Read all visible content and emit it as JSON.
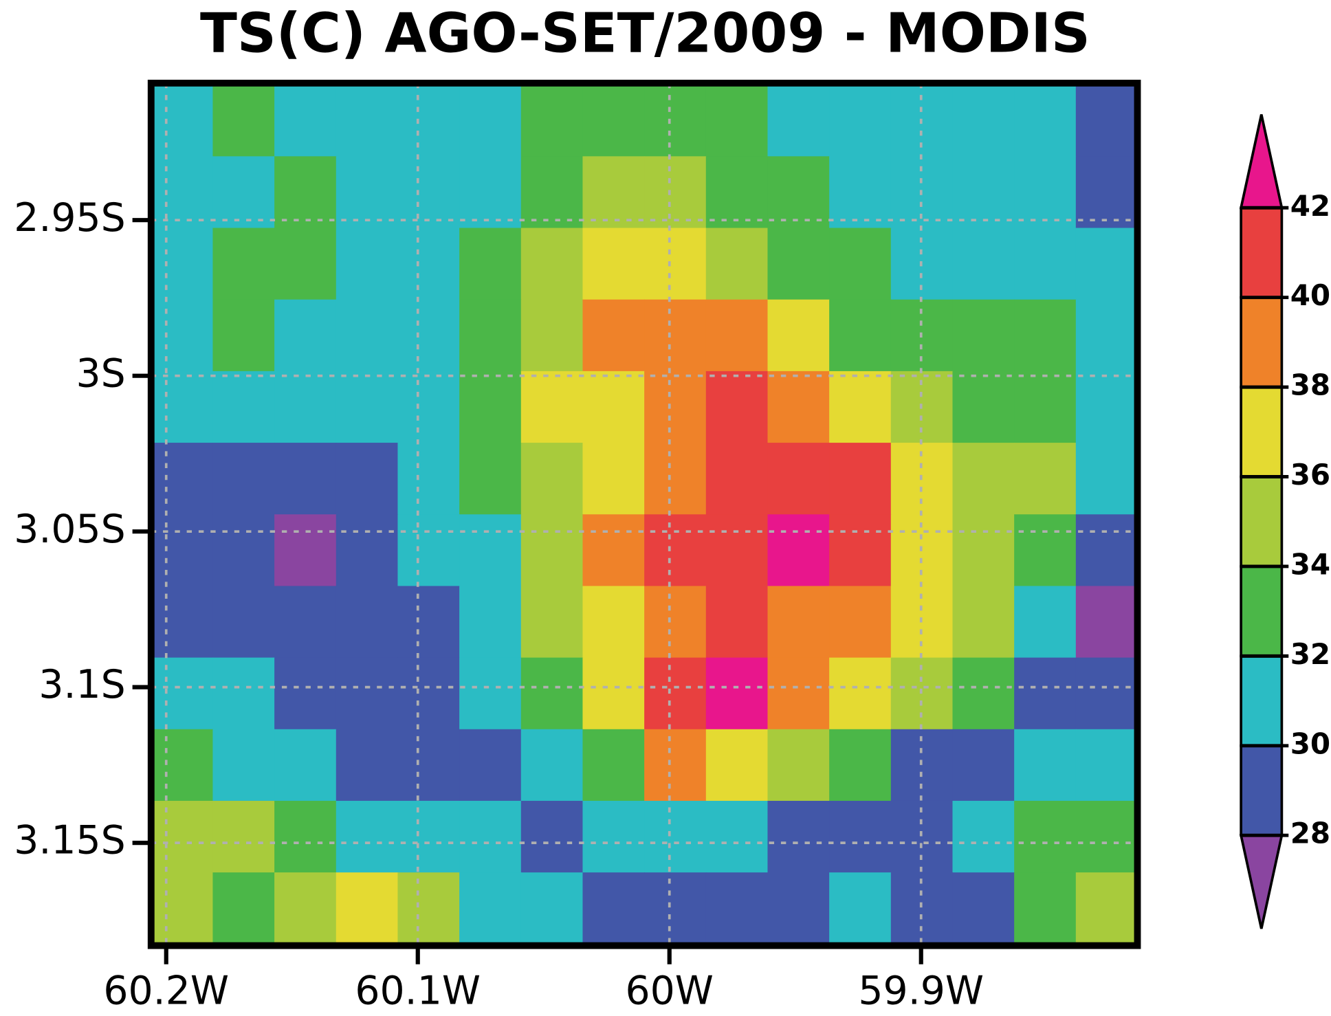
{
  "chart_data": {
    "type": "filled-contour-map",
    "title": "TS(C) AGO-SET/2009 - MODIS",
    "xlim": [
      -60.206,
      -59.814
    ],
    "ylim": [
      -3.183,
      -2.906
    ],
    "xticks": [
      {
        "value": -60.2,
        "label": "60.2W"
      },
      {
        "value": -60.1,
        "label": "60.1W"
      },
      {
        "value": -60.0,
        "label": "60W"
      },
      {
        "value": -59.9,
        "label": "59.9W"
      }
    ],
    "yticks": [
      {
        "value": -2.95,
        "label": "2.95S"
      },
      {
        "value": -3.0,
        "label": "3S"
      },
      {
        "value": -3.05,
        "label": "3.05S"
      },
      {
        "value": -3.1,
        "label": "3.1S"
      },
      {
        "value": -3.15,
        "label": "3.15S"
      }
    ],
    "grid": true,
    "colorbar": {
      "levels": [
        28,
        30,
        32,
        34,
        36,
        38,
        40,
        42
      ],
      "colors": [
        "#8a45a0",
        "#4257a8",
        "#2bbcc4",
        "#4bb748",
        "#a8cb3c",
        "#e4da32",
        "#ef8229",
        "#e8403f",
        "#e8168c"
      ]
    },
    "field": {
      "x": [
        -60.194,
        -60.169,
        -60.145,
        -60.12,
        -60.096,
        -60.071,
        -60.047,
        -60.022,
        -59.998,
        -59.973,
        -59.949,
        -59.924,
        -59.9,
        -59.875,
        -59.851,
        -59.826
      ],
      "y": [
        -2.918,
        -2.941,
        -2.964,
        -2.987,
        -3.01,
        -3.033,
        -3.056,
        -3.079,
        -3.102,
        -3.125,
        -3.148,
        -3.171
      ],
      "values": [
        [
          31,
          32,
          31,
          31,
          31,
          31,
          33,
          33,
          33,
          33,
          31,
          31,
          31,
          31,
          31,
          29
        ],
        [
          31,
          31,
          33,
          31,
          31,
          31,
          33,
          35,
          35,
          33,
          33,
          31,
          31,
          31,
          31,
          29
        ],
        [
          31,
          33,
          33,
          31,
          31,
          33,
          35,
          37,
          37,
          35,
          33,
          33,
          31,
          31,
          31,
          31
        ],
        [
          31,
          33,
          31,
          31,
          31,
          33,
          35,
          39,
          39,
          39,
          37,
          33,
          33,
          33,
          33,
          31
        ],
        [
          31,
          31,
          31,
          31,
          31,
          33,
          37,
          37,
          39,
          41,
          39,
          37,
          35,
          33,
          33,
          31
        ],
        [
          29,
          29,
          29,
          29,
          31,
          33,
          35,
          37,
          39,
          41,
          41,
          41,
          37,
          35,
          35,
          31
        ],
        [
          29,
          29,
          27,
          29,
          31,
          31,
          35,
          39,
          41,
          41,
          43,
          41,
          37,
          35,
          33,
          29
        ],
        [
          29,
          29,
          29,
          29,
          29,
          31,
          35,
          37,
          39,
          41,
          39,
          39,
          37,
          35,
          31,
          27
        ],
        [
          31,
          31,
          29,
          29,
          29,
          31,
          33,
          37,
          41,
          43,
          39,
          37,
          35,
          33,
          29,
          29
        ],
        [
          33,
          31,
          31,
          29,
          29,
          29,
          31,
          33,
          39,
          37,
          35,
          33,
          29,
          29,
          31,
          31
        ],
        [
          35,
          35,
          33,
          31,
          31,
          31,
          29,
          31,
          31,
          31,
          29,
          29,
          29,
          31,
          33,
          33
        ],
        [
          35,
          33,
          35,
          37,
          35,
          31,
          31,
          29,
          29,
          29,
          29,
          31,
          29,
          29,
          33,
          35
        ]
      ]
    }
  }
}
